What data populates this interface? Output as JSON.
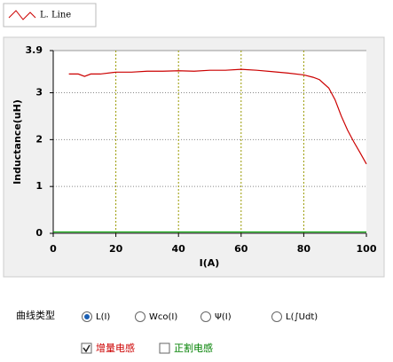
{
  "chart_data": {
    "type": "line",
    "xlabel": "I(A)",
    "ylabel": "Inductance(uH)",
    "xlim": [
      0,
      100
    ],
    "xticks": [
      0,
      20,
      40,
      60,
      80,
      100
    ],
    "ylim": [
      0,
      3.9
    ],
    "yticks": [
      0,
      1,
      2,
      3,
      3.9
    ],
    "grid": true,
    "series": [
      {
        "name": "L. Line",
        "color": "#cc0000",
        "x": [
          5,
          8,
          10,
          12,
          15,
          20,
          25,
          30,
          35,
          40,
          45,
          50,
          55,
          60,
          65,
          70,
          75,
          80,
          83,
          85,
          88,
          90,
          92,
          94,
          96,
          98,
          100
        ],
        "values": [
          3.4,
          3.4,
          3.35,
          3.4,
          3.4,
          3.44,
          3.44,
          3.46,
          3.46,
          3.47,
          3.46,
          3.48,
          3.48,
          3.5,
          3.48,
          3.45,
          3.42,
          3.38,
          3.33,
          3.28,
          3.1,
          2.85,
          2.5,
          2.2,
          1.95,
          1.72,
          1.48
        ]
      },
      {
        "color": "#00a000",
        "x": [
          0,
          100
        ],
        "values": [
          0.03,
          0.03
        ]
      }
    ]
  },
  "controls": {
    "label": "曲线类型",
    "radios": [
      {
        "label": "L(I)",
        "selected": true
      },
      {
        "label": "Wco(I)",
        "selected": false
      },
      {
        "label": "Ψ(I)",
        "selected": false
      },
      {
        "label": "L(∫Udt)",
        "selected": false
      }
    ],
    "checkboxes": [
      {
        "label": "增量电感",
        "checked": true,
        "color": "#cc0000"
      },
      {
        "label": "正割电感",
        "checked": false,
        "color": "#008000"
      }
    ]
  }
}
